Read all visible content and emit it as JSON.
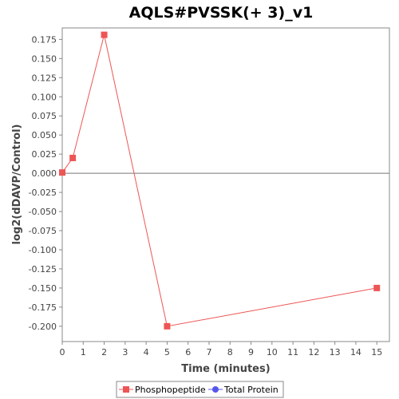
{
  "chart_data": {
    "type": "line",
    "title": "AQLS#PVSSK(+ 3)_v1",
    "xlabel": "Time (minutes)",
    "ylabel": "log2(dDAVP/Control)",
    "xlim": [
      0,
      15.6
    ],
    "ylim": [
      -0.22,
      0.19
    ],
    "x_ticks": [
      0,
      1,
      2,
      3,
      4,
      5,
      6,
      7,
      8,
      9,
      10,
      11,
      12,
      13,
      14,
      15
    ],
    "y_ticks": [
      0.175,
      0.15,
      0.125,
      0.1,
      0.075,
      0.05,
      0.025,
      0.0,
      -0.025,
      -0.05,
      -0.075,
      -0.1,
      -0.125,
      -0.15,
      -0.175,
      -0.2
    ],
    "y_tick_labels": [
      "0.175",
      "0.150",
      "0.125",
      "0.100",
      "0.075",
      "0.050",
      "0.025",
      "0.000",
      "-0.025",
      "-0.050",
      "-0.075",
      "-0.100",
      "-0.125",
      "-0.150",
      "-0.175",
      "-0.200"
    ],
    "zero_line": true,
    "grid": false,
    "legend_position": "bottom",
    "series": [
      {
        "name": "Phosphopeptide",
        "color": "#ee5555",
        "marker": "square",
        "points": [
          {
            "x": 0,
            "y": 0.001
          },
          {
            "x": 0.5,
            "y": 0.02
          },
          {
            "x": 2,
            "y": 0.181
          },
          {
            "x": 5,
            "y": -0.2
          },
          {
            "x": 15,
            "y": -0.15
          }
        ]
      },
      {
        "name": "Total Protein",
        "color": "#5555ee",
        "marker": "circle",
        "points": []
      }
    ]
  }
}
